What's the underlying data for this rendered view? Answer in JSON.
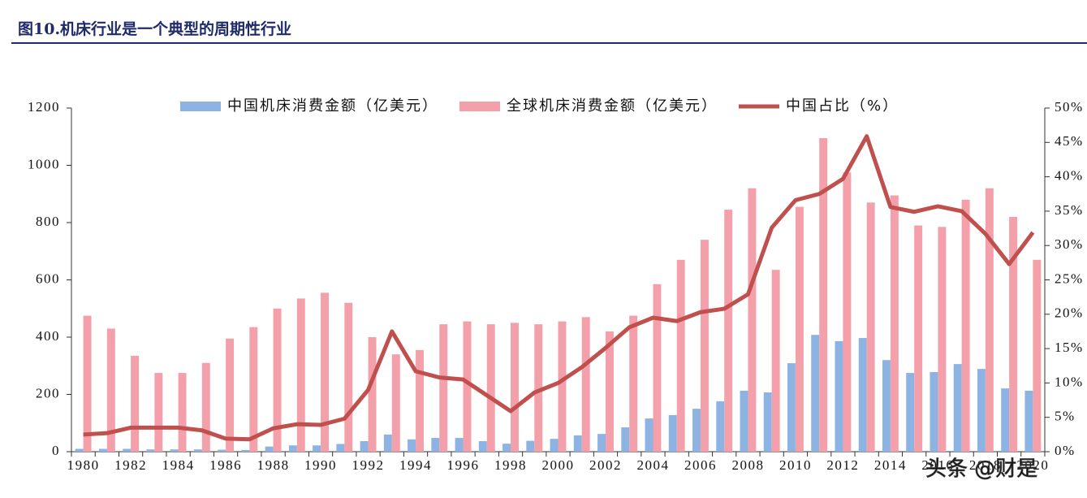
{
  "chart_data": {
    "type": "bar_line",
    "title": "图10.机床行业是一个典型的周期性行业",
    "categories": [
      "1980",
      null,
      "1982",
      null,
      "1984",
      null,
      "1986",
      null,
      "1988",
      null,
      "1990",
      null,
      "1992",
      null,
      "1994",
      null,
      "1996",
      null,
      "1998",
      null,
      "2000",
      null,
      "2002",
      null,
      "2004",
      null,
      "2006",
      null,
      "2008",
      null,
      "2010",
      null,
      "2012",
      null,
      "2014",
      null,
      "2016",
      null,
      "2018",
      null,
      "2020"
    ],
    "series": [
      {
        "name": "中国机床消费金额（亿美元）",
        "type": "bar",
        "color": "#8db3e2",
        "values": [
          10,
          10,
          10,
          8,
          8,
          8,
          7,
          6,
          18,
          22,
          22,
          27,
          37,
          60,
          43,
          48,
          48,
          37,
          28,
          38,
          45,
          57,
          62,
          85,
          116,
          128,
          150,
          176,
          213,
          207,
          309,
          408,
          386,
          397,
          320,
          275,
          278,
          306,
          289,
          221,
          213
        ]
      },
      {
        "name": "全球机床消费金额（亿美元）",
        "type": "bar",
        "color": "#f4a0ab",
        "values": [
          475,
          430,
          335,
          275,
          275,
          310,
          395,
          435,
          500,
          535,
          555,
          520,
          400,
          340,
          355,
          445,
          455,
          445,
          450,
          445,
          455,
          470,
          420,
          475,
          585,
          670,
          740,
          845,
          920,
          635,
          855,
          1095,
          975,
          870,
          895,
          790,
          785,
          880,
          920,
          820,
          670
        ]
      },
      {
        "name": "中国占比（%）",
        "type": "line",
        "axis": "y2",
        "color": "#c0504d",
        "values": [
          2.5,
          2.7,
          3.5,
          3.5,
          3.5,
          3.1,
          1.9,
          1.8,
          3.4,
          4.0,
          3.9,
          4.8,
          9.0,
          17.5,
          11.7,
          10.8,
          10.5,
          8.2,
          5.9,
          8.6,
          10.0,
          12.3,
          15.1,
          18.1,
          19.5,
          19.0,
          20.3,
          20.8,
          22.9,
          32.6,
          36.6,
          37.5,
          39.7,
          45.9,
          35.6,
          34.9,
          35.7,
          35.0,
          31.7,
          27.3,
          31.9
        ]
      }
    ],
    "ylim": [
      0,
      1200
    ],
    "yticks": [
      0,
      200,
      400,
      600,
      800,
      1000,
      1200
    ],
    "y2lim": [
      0,
      50
    ],
    "y2ticks": [
      {
        "value": 0,
        "label": "0%"
      },
      {
        "value": 5,
        "label": "5%"
      },
      {
        "value": 10,
        "label": "10%"
      },
      {
        "value": 15,
        "label": "15%"
      },
      {
        "value": 20,
        "label": "20%"
      },
      {
        "value": 25,
        "label": "25%"
      },
      {
        "value": 30,
        "label": "30%"
      },
      {
        "value": 35,
        "label": "35%"
      },
      {
        "value": 40,
        "label": "40%"
      },
      {
        "value": 45,
        "label": "45%"
      },
      {
        "value": 50,
        "label": "50%"
      }
    ],
    "grid": false,
    "legend": "top",
    "watermark": "头条 @财是"
  }
}
